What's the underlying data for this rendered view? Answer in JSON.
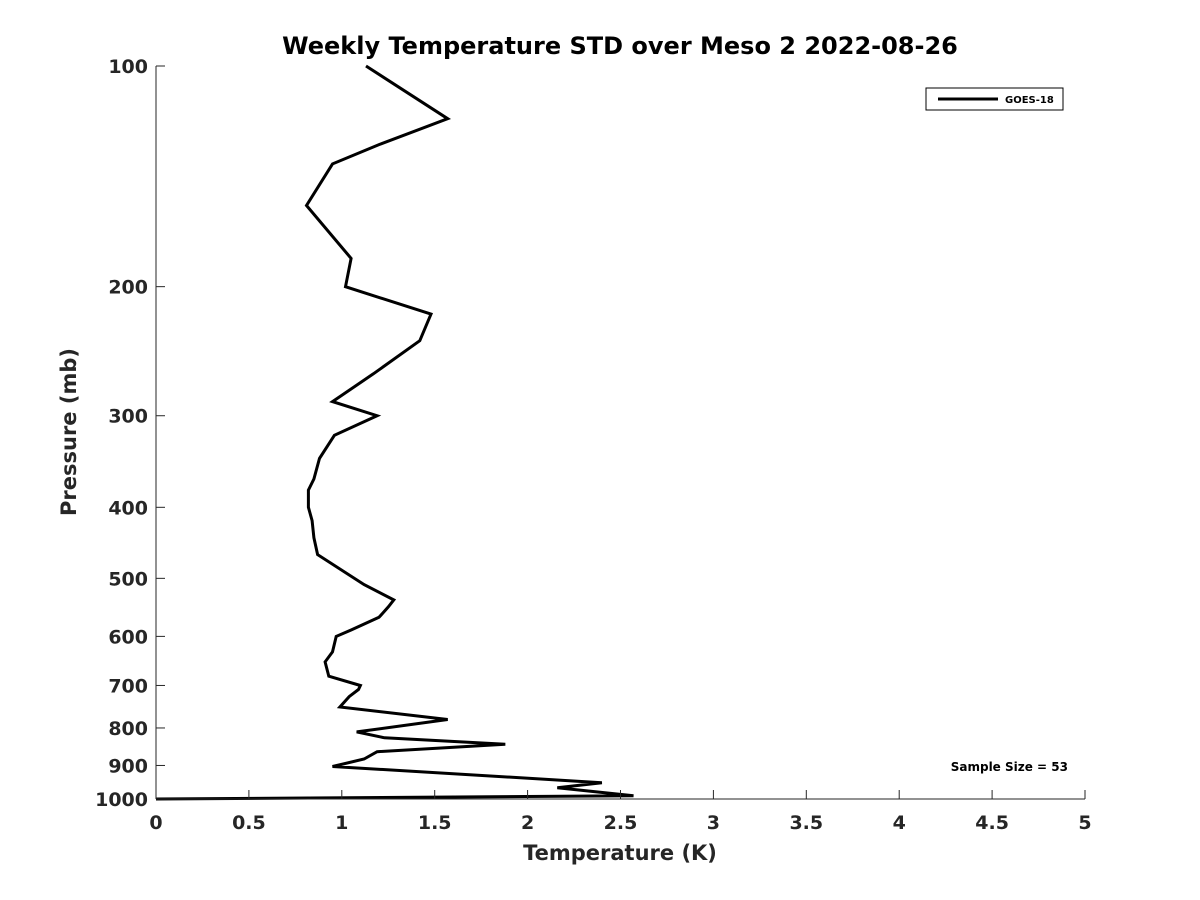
{
  "chart_data": {
    "type": "line",
    "title": "Weekly Temperature STD over Meso 2 2022-08-26",
    "xlabel": "Temperature (K)",
    "ylabel": "Pressure (mb)",
    "xlim": [
      0,
      5
    ],
    "ylim": [
      100,
      1000
    ],
    "y_scale": "log",
    "y_reversed": true,
    "x_ticks": [
      0,
      0.5,
      1,
      1.5,
      2,
      2.5,
      3,
      3.5,
      4,
      4.5,
      5
    ],
    "x_tick_labels": [
      "0",
      "0.5",
      "1",
      "1.5",
      "2",
      "2.5",
      "3",
      "3.5",
      "4",
      "4.5",
      "5"
    ],
    "y_ticks": [
      100,
      200,
      300,
      400,
      500,
      600,
      700,
      800,
      900,
      1000
    ],
    "y_tick_labels": [
      "100",
      "200",
      "300",
      "400",
      "500",
      "600",
      "700",
      "800",
      "900",
      "1000"
    ],
    "grid": false,
    "legend_position": "top-right",
    "annotation": "Sample Size = 53",
    "line_color": "#000000",
    "series": [
      {
        "name": "GOES-18",
        "points": [
          [
            1.13,
            100
          ],
          [
            1.57,
            118
          ],
          [
            1.2,
            128
          ],
          [
            0.95,
            136
          ],
          [
            0.81,
            155
          ],
          [
            1.05,
            183
          ],
          [
            1.02,
            200
          ],
          [
            1.48,
            218
          ],
          [
            1.42,
            237
          ],
          [
            1.17,
            263
          ],
          [
            0.95,
            287
          ],
          [
            1.19,
            300
          ],
          [
            0.96,
            319
          ],
          [
            0.88,
            343
          ],
          [
            0.85,
            366
          ],
          [
            0.82,
            379
          ],
          [
            0.82,
            400
          ],
          [
            0.84,
            417
          ],
          [
            0.85,
            440
          ],
          [
            0.87,
            464
          ],
          [
            1.12,
            510
          ],
          [
            1.28,
            535
          ],
          [
            1.25,
            547
          ],
          [
            1.2,
            565
          ],
          [
            1.05,
            588
          ],
          [
            0.97,
            600
          ],
          [
            0.95,
            630
          ],
          [
            0.91,
            650
          ],
          [
            0.93,
            680
          ],
          [
            1.1,
            700
          ],
          [
            1.09,
            709
          ],
          [
            1.04,
            725
          ],
          [
            0.99,
            749
          ],
          [
            1.57,
            779
          ],
          [
            1.08,
            810
          ],
          [
            1.23,
            825
          ],
          [
            1.88,
            842
          ],
          [
            1.19,
            862
          ],
          [
            1.12,
            882
          ],
          [
            0.95,
            903
          ],
          [
            2.4,
            950
          ],
          [
            2.16,
            965
          ],
          [
            2.57,
            990
          ],
          [
            0.0,
            1000
          ]
        ]
      }
    ]
  }
}
